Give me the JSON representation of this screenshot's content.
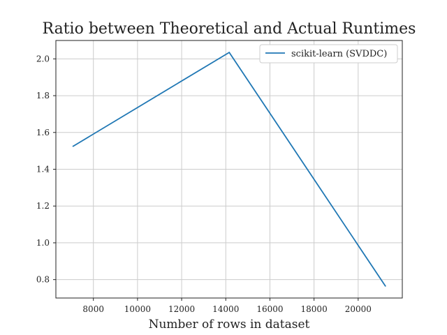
{
  "chart_data": {
    "type": "line",
    "title": "Ratio between Theoretical and Actual Runtimes",
    "xlabel": "Number of rows in dataset",
    "ylabel": "",
    "xlim": [
      6300,
      22000
    ],
    "ylim": [
      0.7,
      2.1
    ],
    "xticks": [
      8000,
      10000,
      12000,
      14000,
      16000,
      18000,
      20000
    ],
    "xtick_labels": [
      "8000",
      "10000",
      "12000",
      "14000",
      "16000",
      "18000",
      "20000"
    ],
    "yticks": [
      0.8,
      1.0,
      1.2,
      1.4,
      1.6,
      1.8,
      2.0
    ],
    "ytick_labels": [
      "0.8",
      "1.0",
      "1.2",
      "1.4",
      "1.6",
      "1.8",
      "2.0"
    ],
    "grid": true,
    "legend_position": "top-right",
    "series": [
      {
        "name": "scikit-learn (SVDDC)",
        "color": "#1f77b4",
        "x": [
          7078,
          14156,
          21234
        ],
        "y": [
          1.525,
          2.035,
          0.765
        ]
      }
    ]
  }
}
